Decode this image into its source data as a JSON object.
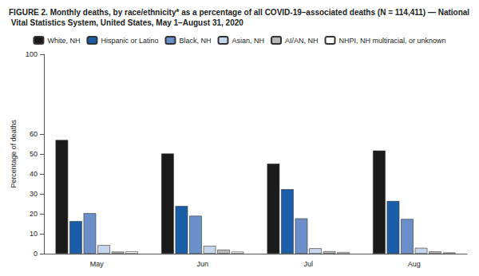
{
  "chart_data": {
    "type": "bar",
    "title": "FIGURE 2. Monthly deaths, by race/ethnicity* as a percentage of all COVID-19–associated deaths (N = 114,411) — National Vital Statistics System, United States, May 1–August 31, 2020",
    "y_label": "Percentage of deaths",
    "categories": [
      "May",
      "Jun",
      "Jul",
      "Aug"
    ],
    "series": [
      {
        "name": "White, NH",
        "color": "#1a1a1a",
        "values": [
          57.0,
          50.2,
          45.1,
          51.7
        ]
      },
      {
        "name": "Hispanic or Latino",
        "color": "#1b5ea8",
        "values": [
          16.3,
          23.9,
          32.3,
          26.4
        ]
      },
      {
        "name": "Black, NH",
        "color": "#6b8fc9",
        "values": [
          20.3,
          19.0,
          17.7,
          17.4
        ]
      },
      {
        "name": "Asian, NH",
        "color": "#c5d5ec",
        "values": [
          4.3,
          3.9,
          2.7,
          2.9
        ]
      },
      {
        "name": "AI/AN, NH",
        "color": "#b8b8b8",
        "values": [
          1.0,
          2.0,
          1.2,
          1.1
        ]
      },
      {
        "name": "NHPI, NH multiracial, or unknown",
        "color": "#ffffff",
        "values": [
          1.1,
          1.0,
          0.8,
          0.6
        ]
      }
    ],
    "ylim": [
      0,
      100
    ],
    "yticks": [
      0,
      10,
      20,
      30,
      40,
      50,
      60,
      100
    ],
    "grid": false,
    "legend": "top"
  }
}
